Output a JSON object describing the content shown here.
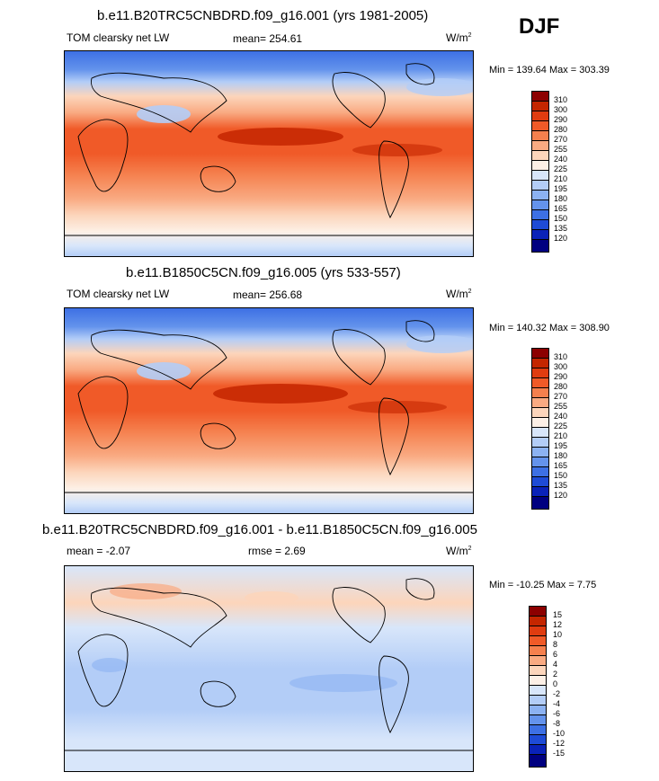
{
  "season_label": "DJF",
  "units_label": "W/m",
  "units_sup": "2",
  "panels": [
    {
      "title": "b.e11.B20TRC5CNBDRD.f09_g16.001 (yrs 1981-2005)",
      "left_label": "TOM clearsky net LW",
      "center_label": "mean= 254.61",
      "minmax": "Min = 139.64 Max = 303.39"
    },
    {
      "title": "b.e11.B1850C5CN.f09_g16.005 (yrs 533-557)",
      "left_label": "TOM clearsky net LW",
      "center_label": "mean= 256.68",
      "minmax": "Min = 140.32 Max = 308.90"
    },
    {
      "title": "b.e11.B20TRC5CNBDRD.f09_g16.001 - b.e11.B1850C5CN.f09_g16.005",
      "left_label": "mean =  -2.07",
      "center_label": "rmse =   2.69",
      "minmax": "Min = -10.25 Max =   7.75"
    }
  ],
  "chart_data": [
    {
      "type": "heatmap",
      "title": "b.e11.B20TRC5CNBDRD.f09_g16.001 (yrs 1981-2005)",
      "variable": "TOM clearsky net LW",
      "units": "W/m2",
      "mean": 254.61,
      "min": 139.64,
      "max": 303.39,
      "contour_levels": [
        120,
        135,
        150,
        165,
        180,
        195,
        210,
        225,
        240,
        255,
        270,
        280,
        290,
        300,
        310
      ]
    },
    {
      "type": "heatmap",
      "title": "b.e11.B1850C5CN.f09_g16.005 (yrs 533-557)",
      "variable": "TOM clearsky net LW",
      "units": "W/m2",
      "mean": 256.68,
      "min": 140.32,
      "max": 308.9,
      "contour_levels": [
        120,
        135,
        150,
        165,
        180,
        195,
        210,
        225,
        240,
        255,
        270,
        280,
        290,
        300,
        310
      ]
    },
    {
      "type": "heatmap",
      "title": "b.e11.B20TRC5CNBDRD.f09_g16.001 - b.e11.B1850C5CN.f09_g16.005",
      "units": "W/m2",
      "mean": -2.07,
      "rmse": 2.69,
      "min": -10.25,
      "max": 7.75,
      "contour_levels": [
        -15,
        -12,
        -10,
        -8,
        -6,
        -4,
        -2,
        0,
        2,
        4,
        6,
        8,
        10,
        12,
        15
      ]
    }
  ],
  "colorbar": {
    "abs_labels": [
      "310",
      "300",
      "290",
      "280",
      "270",
      "255",
      "240",
      "225",
      "210",
      "195",
      "180",
      "165",
      "150",
      "135",
      "120"
    ],
    "diff_labels": [
      "15",
      "12",
      "10",
      "8",
      "6",
      "4",
      "2",
      "0",
      "-2",
      "-4",
      "-6",
      "-8",
      "-10",
      "-12",
      "-15"
    ],
    "colors": [
      "#8c0000",
      "#c42600",
      "#e03c10",
      "#f05a28",
      "#f5804e",
      "#f9aa82",
      "#fcd5bb",
      "#fdf0e6",
      "#d8e6fa",
      "#b3cdf7",
      "#8cb2f2",
      "#6493ec",
      "#3d70e4",
      "#1e4bd6",
      "#0a22b8",
      "#000080"
    ]
  }
}
